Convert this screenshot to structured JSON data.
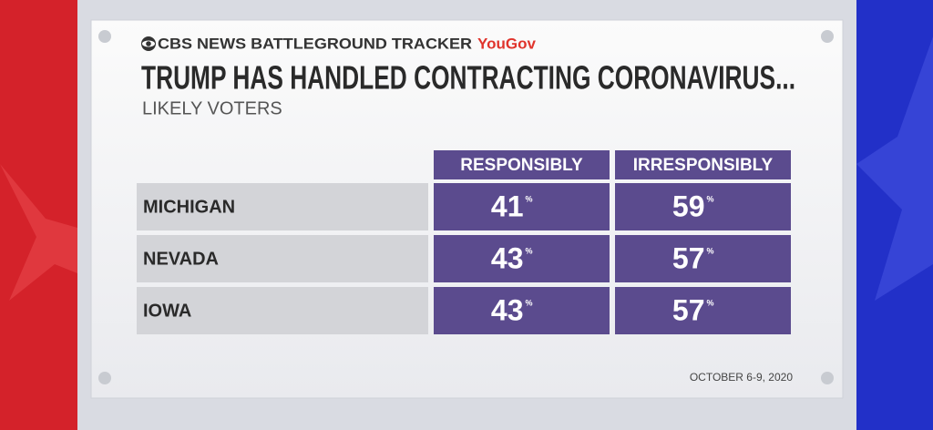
{
  "header": {
    "brand": "CBS NEWS BATTLEGROUND TRACKER",
    "partner": "YouGov",
    "title": "TRUMP HAS HANDLED CONTRACTING CORONAVIRUS...",
    "subtitle": "LIKELY VOTERS"
  },
  "table": {
    "columns": [
      "RESPONSIBLY",
      "IRRESPONSIBLY"
    ],
    "unit": "%",
    "rows": [
      {
        "label": "MICHIGAN",
        "cells": [
          41,
          59
        ]
      },
      {
        "label": "NEVADA",
        "cells": [
          43,
          57
        ]
      },
      {
        "label": "IOWA",
        "cells": [
          43,
          57
        ]
      }
    ]
  },
  "footer": {
    "date": "OCTOBER 6-9, 2020"
  }
}
